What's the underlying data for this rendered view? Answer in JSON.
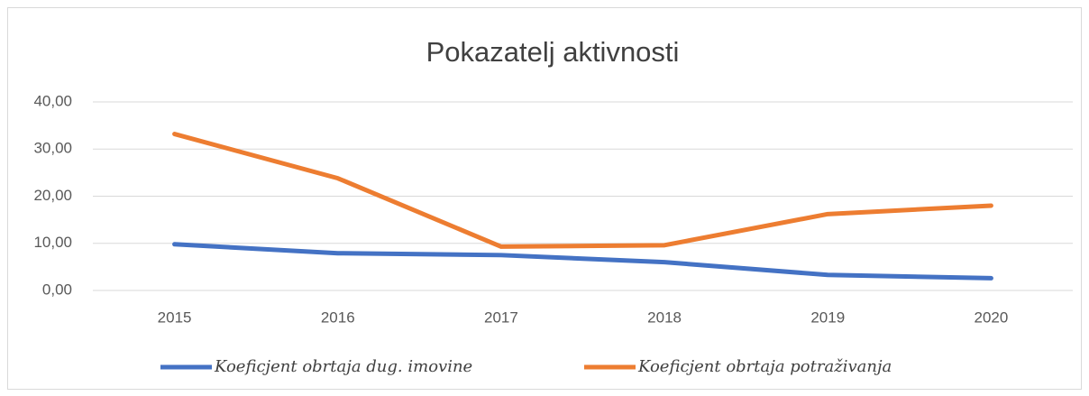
{
  "chart_data": {
    "type": "line",
    "title": "Pokazatelj aktivnosti",
    "categories": [
      "2015",
      "2016",
      "2017",
      "2018",
      "2019",
      "2020"
    ],
    "series": [
      {
        "name": "Koeficjent obrtaja dug. imovine",
        "color": "#4472c4",
        "values": [
          9.8,
          7.9,
          7.5,
          6.0,
          3.3,
          2.6
        ]
      },
      {
        "name": "Koeficjent obrtaja potraživanja",
        "color": "#ed7d31",
        "values": [
          33.2,
          23.8,
          9.3,
          9.6,
          16.2,
          18.0
        ]
      }
    ],
    "ylim": [
      0,
      40
    ],
    "yticks": [
      {
        "value": 0,
        "label": "0,00"
      },
      {
        "value": 10,
        "label": "10,00"
      },
      {
        "value": 20,
        "label": "20,00"
      },
      {
        "value": 30,
        "label": "30,00"
      },
      {
        "value": 40,
        "label": "40,00"
      }
    ],
    "grid": true,
    "legend": "bottom"
  }
}
